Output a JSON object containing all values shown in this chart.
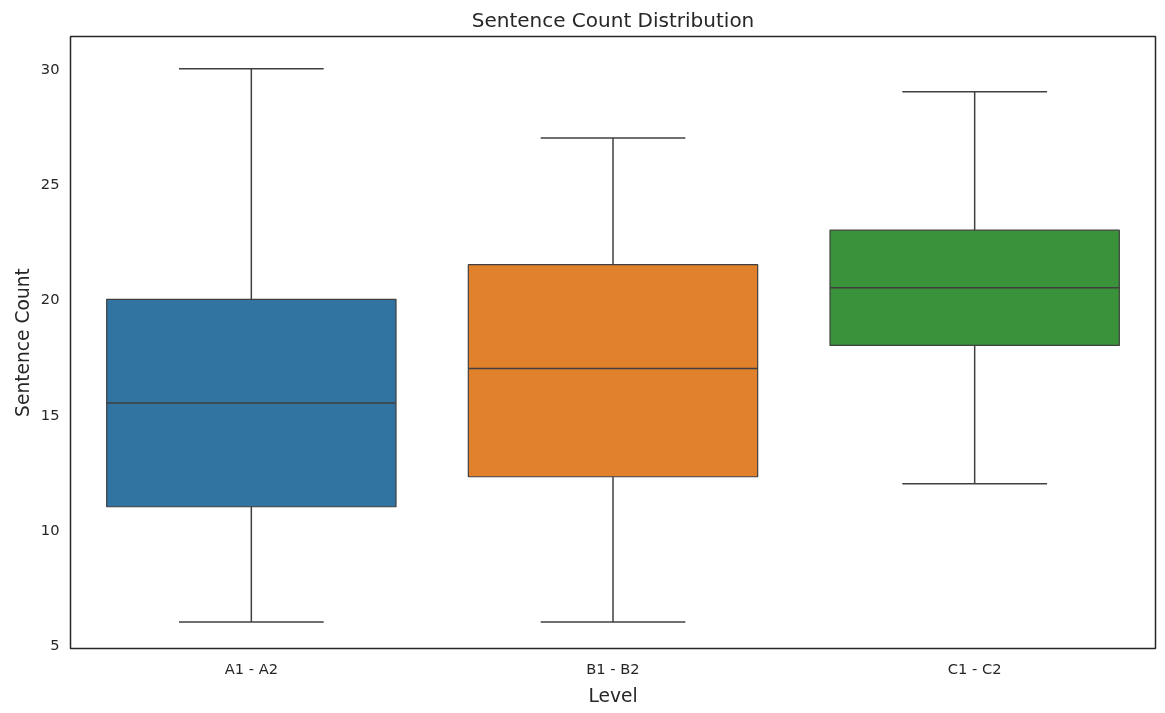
{
  "chart_data": {
    "type": "box",
    "title": "Sentence Count Distribution",
    "xlabel": "Level",
    "ylabel": "Sentence Count",
    "categories": [
      "A1 - A2",
      "B1 - B2",
      "C1 - C2"
    ],
    "colors": [
      "#3274a1",
      "#e1812c",
      "#3a923a"
    ],
    "boxes": [
      {
        "low": 6,
        "q1": 11,
        "median": 15.5,
        "q3": 20,
        "high": 30
      },
      {
        "low": 6,
        "q1": 12.3,
        "median": 17,
        "q3": 21.5,
        "high": 27
      },
      {
        "low": 12,
        "q1": 18,
        "median": 20.5,
        "q3": 23,
        "high": 29
      }
    ],
    "ylim": [
      4.85,
      31.4
    ],
    "yticks": [
      5,
      10,
      15,
      20,
      25,
      30
    ],
    "grid": false
  }
}
